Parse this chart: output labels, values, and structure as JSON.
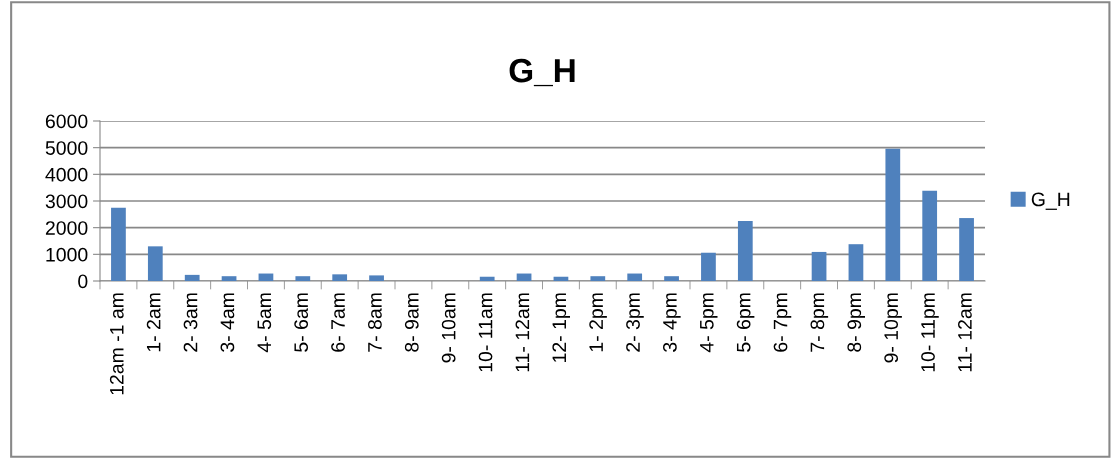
{
  "chart_data": {
    "type": "bar",
    "title": "G_H",
    "categories": [
      "12am -1 am",
      "1- 2am",
      "2- 3am",
      "3- 4am",
      "4- 5am",
      "5- 6am",
      "6- 7am",
      "7- 8am",
      "8- 9am",
      "9- 10am",
      "10- 11am",
      "11- 12am",
      "12- 1pm",
      "1- 2pm",
      "2- 3pm",
      "3- 4pm",
      "4- 5pm",
      "5- 6pm",
      "6- 7pm",
      "7- 8pm",
      "8- 9pm",
      "9- 10pm",
      "10- 11pm",
      "11- 12am"
    ],
    "series": [
      {
        "name": "G_H",
        "color": "#4f81bd",
        "values": [
          2750,
          1300,
          230,
          180,
          280,
          180,
          250,
          210,
          0,
          0,
          160,
          280,
          160,
          180,
          280,
          180,
          1060,
          2250,
          0,
          1090,
          1380,
          4960,
          3380,
          2360
        ]
      }
    ],
    "ylim": [
      0,
      6000
    ],
    "yticks": [
      0,
      1000,
      2000,
      3000,
      4000,
      5000,
      6000
    ],
    "grid": "y",
    "legend": "right"
  }
}
